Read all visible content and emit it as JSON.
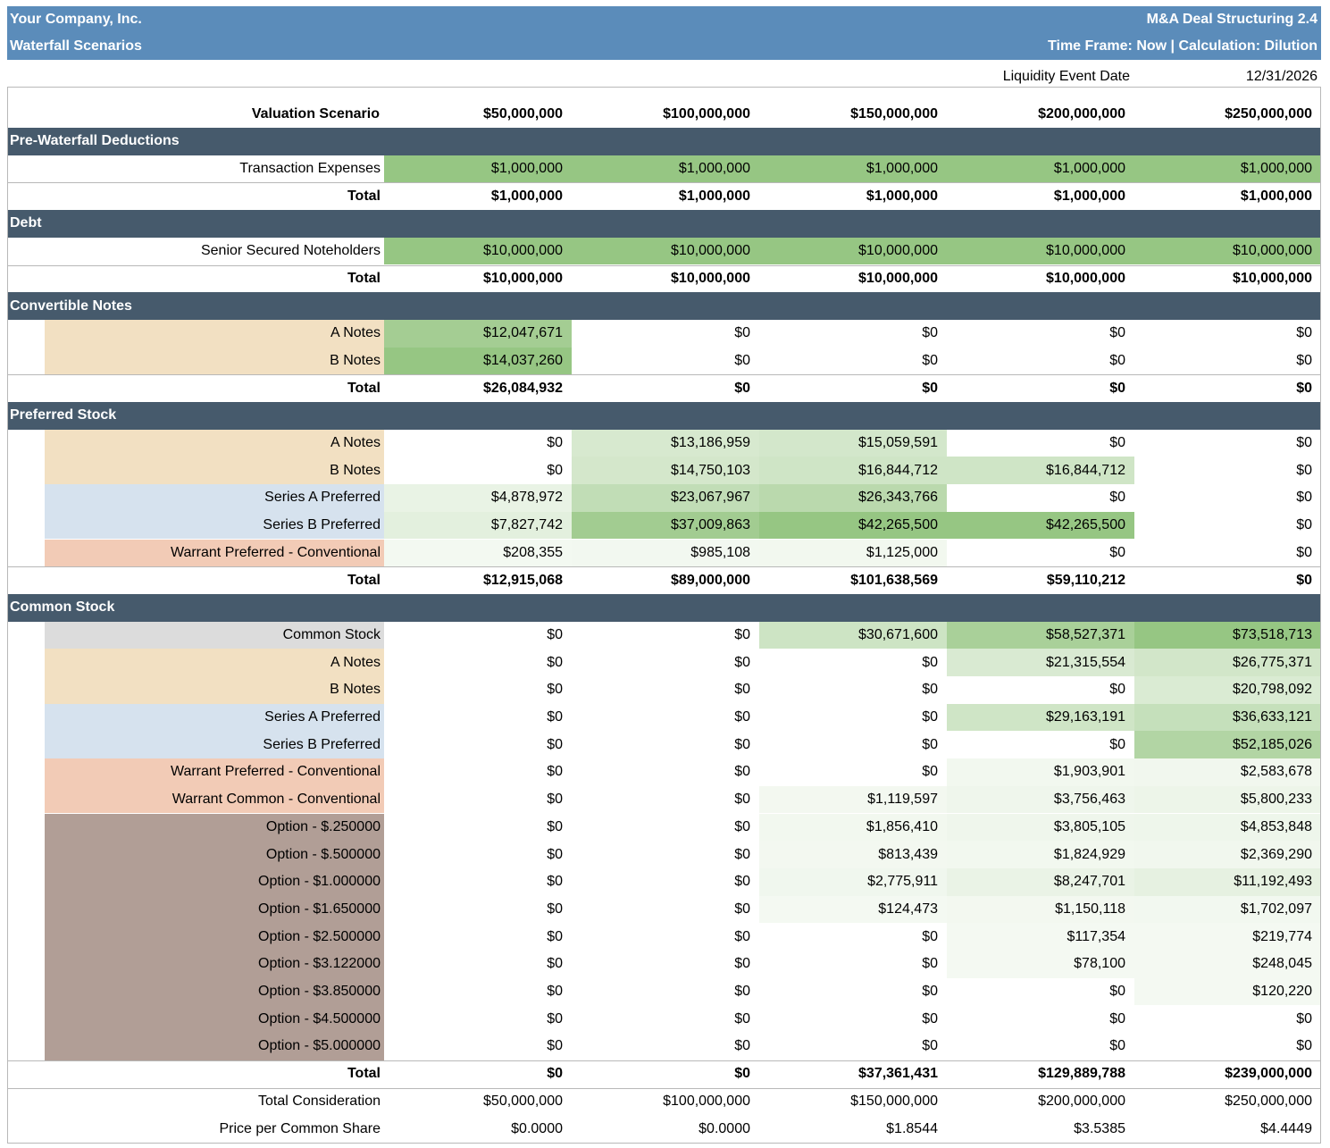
{
  "header": {
    "company": "Your Company, Inc.",
    "product": "M&A Deal Structuring 2.4",
    "subtitle": "Waterfall Scenarios",
    "timeframe": "Time Frame: Now | Calculation: Dilution"
  },
  "liquidity": {
    "label": "Liquidity Event Date",
    "date": "12/31/2026"
  },
  "table": {
    "scenario_label": "Valuation Scenario",
    "scenarios": [
      "$50,000,000",
      "$100,000,000",
      "$150,000,000",
      "$200,000,000",
      "$250,000,000"
    ],
    "sections": [
      {
        "title": "Pre-Waterfall Deductions",
        "rows": [
          {
            "label": "Transaction Expenses",
            "values": [
              "$1,000,000",
              "$1,000,000",
              "$1,000,000",
              "$1,000,000",
              "$1,000,000"
            ]
          }
        ],
        "total": {
          "label": "Total",
          "values": [
            "$1,000,000",
            "$1,000,000",
            "$1,000,000",
            "$1,000,000",
            "$1,000,000"
          ]
        }
      },
      {
        "title": "Debt",
        "rows": [
          {
            "label": "Senior Secured Noteholders",
            "values": [
              "$10,000,000",
              "$10,000,000",
              "$10,000,000",
              "$10,000,000",
              "$10,000,000"
            ]
          }
        ],
        "total": {
          "label": "Total",
          "values": [
            "$10,000,000",
            "$10,000,000",
            "$10,000,000",
            "$10,000,000",
            "$10,000,000"
          ]
        }
      },
      {
        "title": "Convertible Notes",
        "rows": [
          {
            "label": "A Notes",
            "values": [
              "$12,047,671",
              "$0",
              "$0",
              "$0",
              "$0"
            ]
          },
          {
            "label": "B Notes",
            "values": [
              "$14,037,260",
              "$0",
              "$0",
              "$0",
              "$0"
            ]
          }
        ],
        "total": {
          "label": "Total",
          "values": [
            "$26,084,932",
            "$0",
            "$0",
            "$0",
            "$0"
          ]
        }
      },
      {
        "title": "Preferred Stock",
        "rows": [
          {
            "label": "A Notes",
            "values": [
              "$0",
              "$13,186,959",
              "$15,059,591",
              "$0",
              "$0"
            ]
          },
          {
            "label": "B Notes",
            "values": [
              "$0",
              "$14,750,103",
              "$16,844,712",
              "$16,844,712",
              "$0"
            ]
          },
          {
            "label": "Series A Preferred",
            "values": [
              "$4,878,972",
              "$23,067,967",
              "$26,343,766",
              "$0",
              "$0"
            ]
          },
          {
            "label": "Series B Preferred",
            "values": [
              "$7,827,742",
              "$37,009,863",
              "$42,265,500",
              "$42,265,500",
              "$0"
            ]
          },
          {
            "label": "Warrant Preferred - Conventional",
            "values": [
              "$208,355",
              "$985,108",
              "$1,125,000",
              "$0",
              "$0"
            ]
          }
        ],
        "total": {
          "label": "Total",
          "values": [
            "$12,915,068",
            "$89,000,000",
            "$101,638,569",
            "$59,110,212",
            "$0"
          ]
        }
      },
      {
        "title": "Common Stock",
        "rows": [
          {
            "label": "Common Stock",
            "values": [
              "$0",
              "$0",
              "$30,671,600",
              "$58,527,371",
              "$73,518,713"
            ]
          },
          {
            "label": "A Notes",
            "values": [
              "$0",
              "$0",
              "$0",
              "$21,315,554",
              "$26,775,371"
            ]
          },
          {
            "label": "B Notes",
            "values": [
              "$0",
              "$0",
              "$0",
              "$0",
              "$20,798,092"
            ]
          },
          {
            "label": "Series A Preferred",
            "values": [
              "$0",
              "$0",
              "$0",
              "$29,163,191",
              "$36,633,121"
            ]
          },
          {
            "label": "Series B Preferred",
            "values": [
              "$0",
              "$0",
              "$0",
              "$0",
              "$52,185,026"
            ]
          },
          {
            "label": "Warrant Preferred - Conventional",
            "values": [
              "$0",
              "$0",
              "$0",
              "$1,903,901",
              "$2,583,678"
            ]
          },
          {
            "label": "Warrant Common - Conventional",
            "values": [
              "$0",
              "$0",
              "$1,119,597",
              "$3,756,463",
              "$5,800,233"
            ]
          },
          {
            "label": "Option - $.250000",
            "values": [
              "$0",
              "$0",
              "$1,856,410",
              "$3,805,105",
              "$4,853,848"
            ]
          },
          {
            "label": "Option - $.500000",
            "values": [
              "$0",
              "$0",
              "$813,439",
              "$1,824,929",
              "$2,369,290"
            ]
          },
          {
            "label": "Option - $1.000000",
            "values": [
              "$0",
              "$0",
              "$2,775,911",
              "$8,247,701",
              "$11,192,493"
            ]
          },
          {
            "label": "Option - $1.650000",
            "values": [
              "$0",
              "$0",
              "$124,473",
              "$1,150,118",
              "$1,702,097"
            ]
          },
          {
            "label": "Option - $2.500000",
            "values": [
              "$0",
              "$0",
              "$0",
              "$117,354",
              "$219,774"
            ]
          },
          {
            "label": "Option - $3.122000",
            "values": [
              "$0",
              "$0",
              "$0",
              "$78,100",
              "$248,045"
            ]
          },
          {
            "label": "Option - $3.850000",
            "values": [
              "$0",
              "$0",
              "$0",
              "$0",
              "$120,220"
            ]
          },
          {
            "label": "Option - $4.500000",
            "values": [
              "$0",
              "$0",
              "$0",
              "$0",
              "$0"
            ]
          },
          {
            "label": "Option - $5.000000",
            "values": [
              "$0",
              "$0",
              "$0",
              "$0",
              "$0"
            ]
          }
        ],
        "total": {
          "label": "Total",
          "values": [
            "$0",
            "$0",
            "$37,361,431",
            "$129,889,788",
            "$239,000,000"
          ]
        }
      }
    ],
    "footer": [
      {
        "label": "Total Consideration",
        "values": [
          "$50,000,000",
          "$100,000,000",
          "$150,000,000",
          "$200,000,000",
          "$250,000,000"
        ]
      },
      {
        "label": "Price per Common Share",
        "values": [
          "$0.0000",
          "$0.0000",
          "$1.8544",
          "$3.5385",
          "$4.4449"
        ]
      }
    ]
  }
}
